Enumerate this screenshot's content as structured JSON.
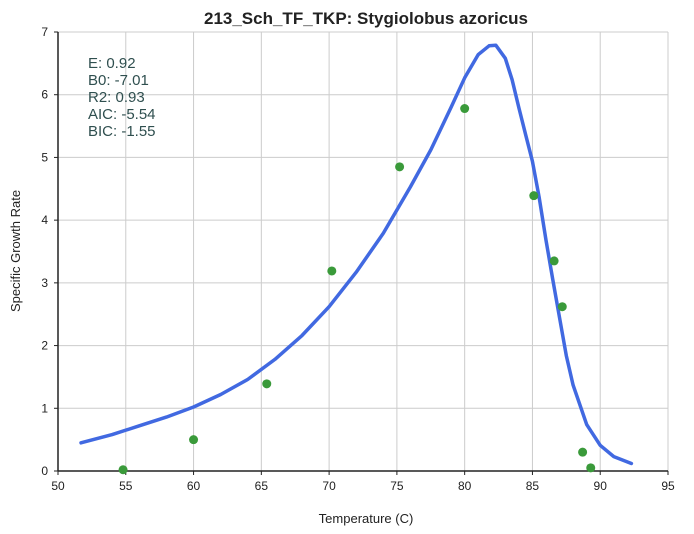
{
  "chart_data": {
    "type": "scatter",
    "title": "213_Sch_TF_TKP: Stygiolobus azoricus",
    "xlabel": "Temperature (C)",
    "ylabel": "Specific Growth Rate",
    "xlim": [
      50,
      95
    ],
    "ylim": [
      0,
      7
    ],
    "xticks": [
      50,
      55,
      60,
      65,
      70,
      75,
      80,
      85,
      90,
      95
    ],
    "yticks": [
      0,
      1,
      2,
      3,
      4,
      5,
      6,
      7
    ],
    "grid": true,
    "annotations": [
      "E:  0.92",
      "B0:  -7.01",
      "R2:  0.93",
      "AIC: -5.54",
      "BIC: -1.55"
    ],
    "series": [
      {
        "type": "scatter",
        "color": "#3a9a3a",
        "x": [
          54.8,
          60.0,
          65.4,
          70.2,
          75.2,
          80.0,
          85.1,
          86.6,
          87.2,
          88.7,
          89.3
        ],
        "y": [
          0.02,
          0.5,
          1.39,
          3.19,
          4.85,
          5.78,
          4.39,
          3.35,
          2.62,
          0.3,
          0.05
        ]
      },
      {
        "type": "line",
        "color": "#4169e1",
        "x": [
          51.7,
          54,
          56,
          58,
          60,
          62,
          64,
          66,
          68,
          70,
          72,
          74,
          76,
          77.5,
          79,
          80,
          81,
          81.8,
          82.3,
          83,
          83.5,
          84,
          84.5,
          85,
          85.5,
          86,
          86.5,
          87,
          87.5,
          88,
          89,
          90,
          91,
          92.3
        ],
        "y": [
          0.45,
          0.58,
          0.72,
          0.86,
          1.02,
          1.22,
          1.46,
          1.78,
          2.16,
          2.62,
          3.17,
          3.79,
          4.53,
          5.12,
          5.8,
          6.27,
          6.64,
          6.78,
          6.79,
          6.58,
          6.24,
          5.79,
          5.36,
          4.94,
          4.36,
          3.68,
          3.05,
          2.44,
          1.84,
          1.37,
          0.74,
          0.41,
          0.23,
          0.12
        ]
      }
    ]
  }
}
